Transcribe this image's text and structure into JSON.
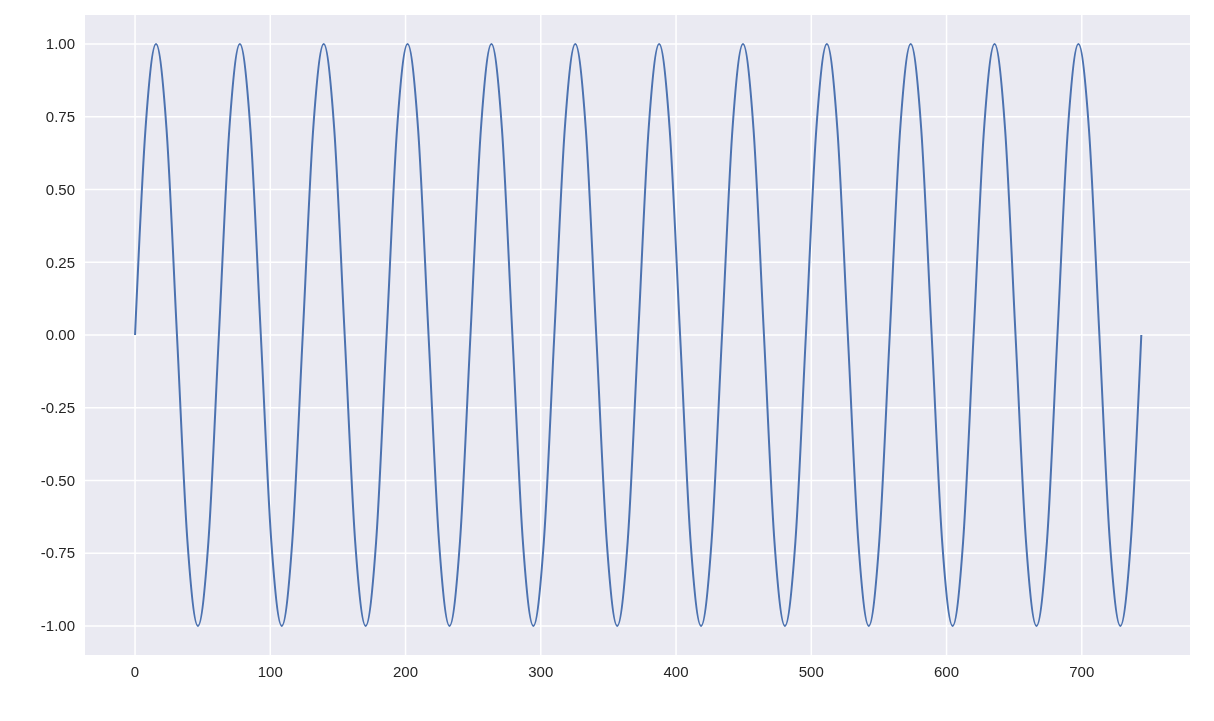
{
  "chart_data": {
    "type": "line",
    "x": [
      0,
      7.75,
      15.5,
      23.25,
      31,
      38.75,
      46.5,
      54.25,
      62,
      69.75,
      77.5,
      85.25,
      93,
      100.75,
      108.5,
      116.25,
      124,
      131.75,
      139.5,
      147.25,
      155,
      162.75,
      170.5,
      178.25,
      186,
      193.75,
      201.5,
      209.25,
      217,
      224.75,
      232.5,
      240.25,
      248,
      255.75,
      263.5,
      271.25,
      279,
      286.75,
      294.5,
      302.25,
      310,
      317.75,
      325.5,
      333.25,
      341,
      348.75,
      356.5,
      364.25,
      372,
      379.75,
      387.5,
      395.25,
      403,
      410.75,
      418.5,
      426.25,
      434,
      441.75,
      449.5,
      457.25,
      465,
      472.75,
      480.5,
      488.25,
      496,
      503.75,
      511.5,
      519.25,
      527,
      534.75,
      542.5,
      550.25,
      558,
      565.75,
      573.5,
      581.25,
      589,
      596.75,
      604.5,
      612.25,
      620,
      627.75,
      635.5,
      643.25,
      651,
      658.75,
      666.5,
      674.25,
      682,
      689.75,
      697.5,
      705.25,
      713,
      720.75,
      728.5,
      736.25,
      744
    ],
    "series": [
      {
        "color": "#4c72b0",
        "values": [
          0,
          0.71,
          1,
          0.71,
          0,
          -0.71,
          -1,
          -0.71,
          0,
          0.71,
          1,
          0.71,
          0,
          -0.71,
          -1,
          -0.71,
          0,
          0.71,
          1,
          0.71,
          0,
          -0.71,
          -1,
          -0.71,
          0,
          0.71,
          1,
          0.71,
          0,
          -0.71,
          -1,
          -0.71,
          0,
          0.71,
          1,
          0.71,
          0,
          -0.71,
          -1,
          -0.71,
          0,
          0.71,
          1,
          0.71,
          0,
          -0.71,
          -1,
          -0.71,
          0,
          0.71,
          1,
          0.71,
          0,
          -0.71,
          -1,
          -0.71,
          0,
          0.71,
          1,
          0.71,
          0,
          -0.71,
          -1,
          -0.71,
          0,
          0.71,
          1,
          0.71,
          0,
          -0.71,
          -1,
          -0.71,
          0,
          0.71,
          1,
          0.71,
          0,
          -0.71,
          -1,
          -0.71,
          0,
          0.71,
          1,
          0.71,
          0,
          -0.71,
          -1,
          -0.71,
          0,
          0.71,
          1,
          0.71,
          0,
          -0.71,
          -1,
          -0.71,
          0
        ]
      }
    ],
    "xlim": [
      -37,
      780
    ],
    "xticks": [
      0,
      100,
      200,
      300,
      400,
      500,
      600,
      700
    ],
    "ylim": [
      -1.1,
      1.1
    ],
    "yticks": [
      {
        "value": -1,
        "label": "-1.00"
      },
      {
        "value": -0.75,
        "label": "-0.75"
      },
      {
        "value": -0.5,
        "label": "-0.50"
      },
      {
        "value": -0.25,
        "label": "-0.25"
      },
      {
        "value": 0,
        "label": "0.00"
      },
      {
        "value": 0.25,
        "label": "0.25"
      },
      {
        "value": 0.5,
        "label": "0.50"
      },
      {
        "value": 0.75,
        "label": "0.75"
      },
      {
        "value": 1,
        "label": "1.00"
      }
    ],
    "grid": true,
    "line_style": "solid"
  }
}
